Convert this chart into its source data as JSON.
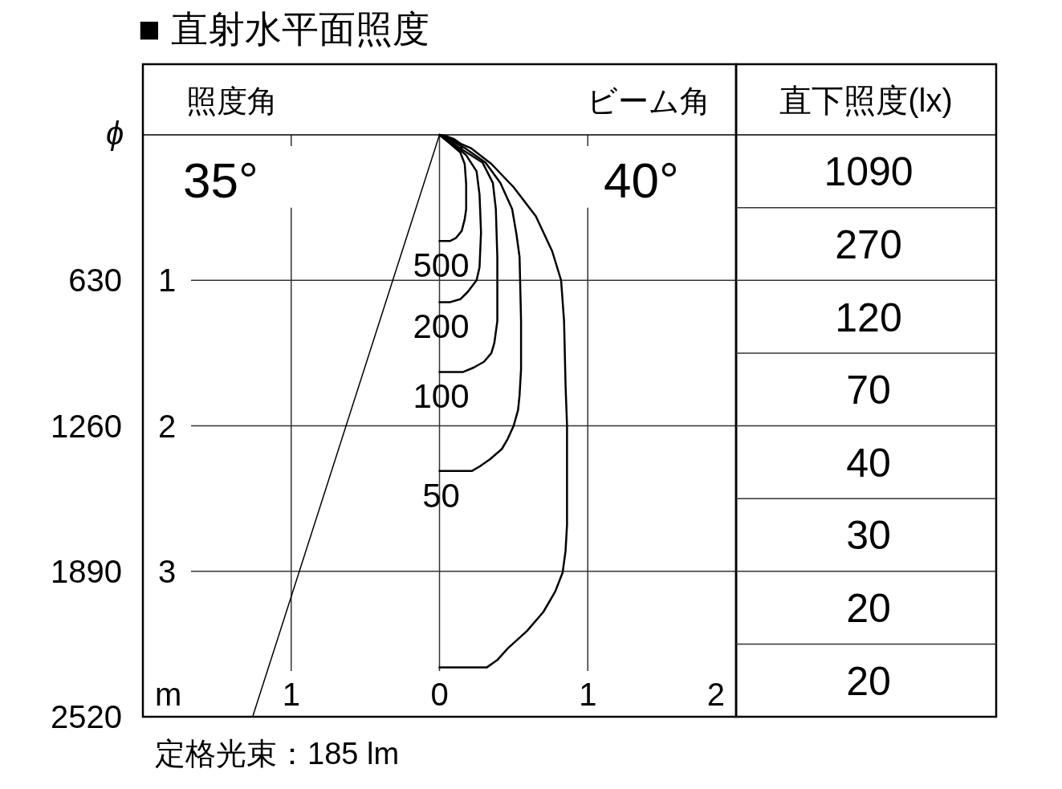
{
  "chart_data": [
    {
      "type": "line",
      "title": "■ 直射水平面照度",
      "xlabel": "m",
      "y2label": "ϕ",
      "annotations": [
        "照度角",
        "35°",
        "ビーム角",
        "40°",
        "定格光束：185 lm"
      ],
      "xlim": [
        -2,
        2
      ],
      "xticks": [
        {
          "value": -1,
          "label": "1"
        },
        0,
        1,
        2
      ],
      "ylim": [
        4,
        0
      ],
      "yticks": [
        1,
        2,
        3
      ],
      "y2lim": [
        2520,
        0
      ],
      "y2ticks": [
        630,
        1260,
        1890,
        2520
      ],
      "grid": true,
      "series": [
        {
          "color": "#000000",
          "x": [
            0,
            -1.26
          ],
          "values": [
            0,
            4
          ]
        },
        {
          "name": "500",
          "color": "#000000",
          "x": [
            0,
            0.07,
            0.14,
            0.17,
            0.18,
            0.18,
            0.17,
            0.15,
            0.11,
            0.07,
            0
          ],
          "values": [
            0,
            0.06,
            0.12,
            0.2,
            0.34,
            0.51,
            0.58,
            0.66,
            0.71,
            0.73,
            0.73
          ]
        },
        {
          "name": "200",
          "color": "#000000",
          "x": [
            0,
            0.1,
            0.18,
            0.25,
            0.27,
            0.28,
            0.27,
            0.25,
            0.19,
            0.14,
            0.07,
            0
          ],
          "values": [
            0,
            0.07,
            0.14,
            0.25,
            0.41,
            0.67,
            0.91,
            1.0,
            1.08,
            1.13,
            1.15,
            1.15
          ]
        },
        {
          "name": "100",
          "color": "#000000",
          "x": [
            0,
            0.12,
            0.29,
            0.36,
            0.38,
            0.39,
            0.39,
            0.37,
            0.35,
            0.3,
            0.23,
            0.16,
            0
          ],
          "values": [
            0,
            0.08,
            0.19,
            0.33,
            0.51,
            0.84,
            1.28,
            1.43,
            1.5,
            1.56,
            1.6,
            1.63,
            1.63
          ]
        },
        {
          "name": "50",
          "color": "#000000",
          "x": [
            0,
            0.17,
            0.31,
            0.41,
            0.49,
            0.52,
            0.54,
            0.55,
            0.55,
            0.54,
            0.53,
            0.5,
            0.46,
            0.42,
            0.34,
            0.27,
            0.22,
            0
          ],
          "values": [
            0,
            0.09,
            0.19,
            0.33,
            0.51,
            0.69,
            0.84,
            1.28,
            1.61,
            1.79,
            1.89,
            2.0,
            2.09,
            2.16,
            2.23,
            2.28,
            2.31,
            2.31
          ]
        },
        {
          "color": "#000000",
          "x": [
            0,
            0.21,
            0.35,
            0.5,
            0.65,
            0.76,
            0.82,
            0.84,
            0.85,
            0.86,
            0.86,
            0.86,
            0.85,
            0.83,
            0.78,
            0.7,
            0.59,
            0.46,
            0.39,
            0.32,
            0
          ],
          "values": [
            0,
            0.09,
            0.2,
            0.36,
            0.56,
            0.8,
            1.0,
            1.28,
            1.72,
            2.0,
            2.38,
            2.68,
            2.86,
            3.01,
            3.14,
            3.28,
            3.41,
            3.53,
            3.61,
            3.66,
            3.66
          ]
        },
        {
          "color": "#000000",
          "x": [
            0,
            0.05,
            0.1,
            0.14,
            0.15,
            0.12,
            0.07,
            0.02
          ],
          "values": [
            0,
            0.01,
            0.03,
            0.06,
            0.09,
            0.09,
            0.05,
            0.01
          ]
        }
      ]
    },
    {
      "type": "other",
      "title": "直下照度(lx)",
      "values": [
        1090,
        270,
        120,
        70,
        40,
        30,
        20,
        20
      ],
      "data_labels": true
    }
  ]
}
